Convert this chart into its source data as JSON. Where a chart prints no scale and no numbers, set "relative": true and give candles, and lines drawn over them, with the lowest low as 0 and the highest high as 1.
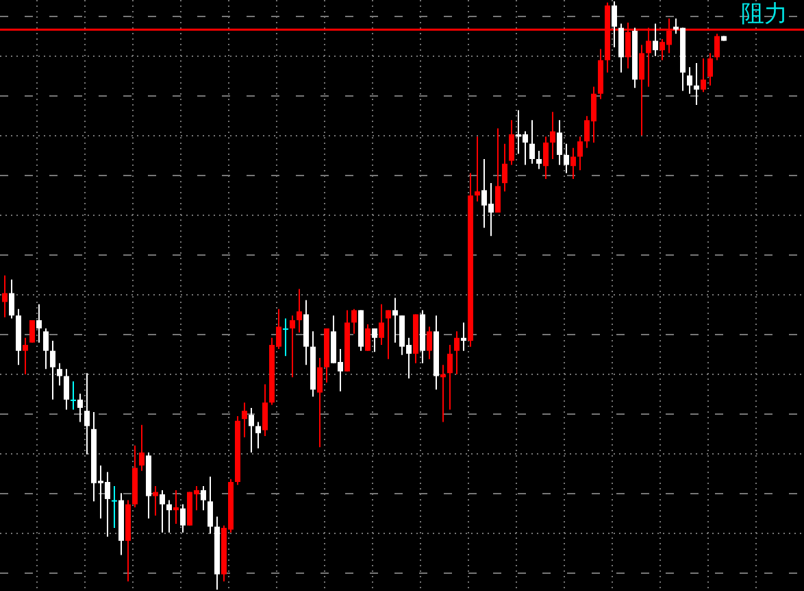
{
  "chart_data": {
    "type": "candlestick",
    "relative": true,
    "grid": true,
    "categories": [
      null,
      null,
      null,
      null,
      null,
      null,
      null,
      null,
      null,
      null,
      null,
      null,
      null,
      null,
      null,
      null,
      null,
      null,
      null,
      null,
      null,
      null,
      null,
      null,
      null,
      null,
      null,
      null,
      null,
      null,
      null,
      null,
      null,
      null,
      null,
      null,
      null,
      null,
      null,
      null,
      null,
      null,
      null,
      null,
      null,
      null,
      null,
      null,
      null,
      null,
      null,
      null,
      null,
      null,
      null,
      null,
      null,
      null,
      null,
      null,
      null,
      null,
      null,
      null,
      null,
      null,
      null,
      null,
      null,
      null,
      null,
      null,
      null,
      null,
      null,
      null,
      null,
      null,
      null,
      null,
      null,
      null,
      null,
      null,
      null,
      null,
      null,
      null,
      null,
      null,
      null,
      null,
      null,
      null,
      null,
      null,
      null,
      null,
      null,
      null,
      null,
      null,
      null,
      null,
      null,
      null
    ],
    "ohlc": [
      [
        0.489,
        0.534,
        0.463,
        0.504
      ],
      [
        0.504,
        0.527,
        0.461,
        0.466
      ],
      [
        0.466,
        0.477,
        0.382,
        0.406
      ],
      [
        0.406,
        0.428,
        0.366,
        0.416
      ],
      [
        0.42,
        0.458,
        0.42,
        0.458
      ],
      [
        0.458,
        0.485,
        0.42,
        0.444
      ],
      [
        0.439,
        0.444,
        0.375,
        0.406
      ],
      [
        0.406,
        0.423,
        0.323,
        0.378
      ],
      [
        0.375,
        0.385,
        0.347,
        0.363
      ],
      [
        0.363,
        0.375,
        0.306,
        0.323
      ],
      [
        0.323,
        0.354,
        0.306,
        0.323
      ],
      [
        0.323,
        0.333,
        0.285,
        0.309
      ],
      [
        0.304,
        0.368,
        0.23,
        0.278
      ],
      [
        0.273,
        0.302,
        0.15,
        0.181
      ],
      [
        0.185,
        0.211,
        0.121,
        0.181
      ],
      [
        0.183,
        0.2,
        0.09,
        0.154
      ],
      [
        0.152,
        0.176,
        0.105,
        0.152
      ],
      [
        0.152,
        0.164,
        0.059,
        0.083
      ],
      [
        0.083,
        0.152,
        0.014,
        0.145
      ],
      [
        0.145,
        0.245,
        0.14,
        0.207
      ],
      [
        0.211,
        0.28,
        0.202,
        0.233
      ],
      [
        0.228,
        0.233,
        0.121,
        0.159
      ],
      [
        0.159,
        0.176,
        0.126,
        0.166
      ],
      [
        0.162,
        0.169,
        0.097,
        0.145
      ],
      [
        0.145,
        0.152,
        0.097,
        0.135
      ],
      [
        0.135,
        0.169,
        0.112,
        0.14
      ],
      [
        0.138,
        0.145,
        0.097,
        0.109
      ],
      [
        0.109,
        0.166,
        0.109,
        0.166
      ],
      [
        0.162,
        0.176,
        0.135,
        0.169
      ],
      [
        0.169,
        0.176,
        0.135,
        0.152
      ],
      [
        0.15,
        0.192,
        0.095,
        0.107
      ],
      [
        0.107,
        0.124,
        0,
        0.026
      ],
      [
        0.026,
        0.109,
        0.014,
        0.105
      ],
      [
        0.102,
        0.188,
        0.097,
        0.183
      ],
      [
        0.183,
        0.295,
        0.178,
        0.287
      ],
      [
        0.29,
        0.318,
        0.259,
        0.304
      ],
      [
        0.297,
        0.309,
        0.233,
        0.278
      ],
      [
        0.278,
        0.285,
        0.24,
        0.266
      ],
      [
        0.271,
        0.349,
        0.261,
        0.318
      ],
      [
        0.318,
        0.428,
        0.314,
        0.416
      ],
      [
        0.413,
        0.477,
        0.409,
        0.447
      ],
      [
        0.444,
        0.461,
        0.397,
        0.444
      ],
      [
        0.444,
        0.466,
        0.361,
        0.458
      ],
      [
        0.458,
        0.511,
        0.437,
        0.473
      ],
      [
        0.468,
        0.492,
        0.382,
        0.413
      ],
      [
        0.413,
        0.439,
        0.328,
        0.34
      ],
      [
        0.335,
        0.394,
        0.242,
        0.378
      ],
      [
        0.378,
        0.444,
        0.352,
        0.444
      ],
      [
        0.439,
        0.466,
        0.385,
        0.385
      ],
      [
        0.387,
        0.409,
        0.337,
        0.371
      ],
      [
        0.371,
        0.475,
        0.371,
        0.454
      ],
      [
        0.454,
        0.477,
        0.435,
        0.475
      ],
      [
        0.475,
        0.475,
        0.406,
        0.413
      ],
      [
        0.406,
        0.451,
        0.406,
        0.444
      ],
      [
        0.444,
        0.444,
        0.404,
        0.428
      ],
      [
        0.428,
        0.485,
        0.416,
        0.454
      ],
      [
        0.461,
        0.475,
        0.392,
        0.475
      ],
      [
        0.475,
        0.496,
        0.42,
        0.466
      ],
      [
        0.466,
        0.466,
        0.399,
        0.413
      ],
      [
        0.416,
        0.428,
        0.359,
        0.401
      ],
      [
        0.401,
        0.468,
        0.385,
        0.468
      ],
      [
        0.468,
        0.475,
        0.385,
        0.406
      ],
      [
        0.406,
        0.447,
        0.392,
        0.439
      ],
      [
        0.439,
        0.466,
        0.34,
        0.363
      ],
      [
        0.361,
        0.382,
        0.285,
        0.366
      ],
      [
        0.368,
        0.416,
        0.306,
        0.401
      ],
      [
        0.406,
        0.439,
        0.366,
        0.428
      ],
      [
        0.428,
        0.454,
        0.406,
        0.423
      ],
      [
        0.423,
        0.708,
        0.413,
        0.67
      ],
      [
        0.67,
        0.77,
        0.66,
        0.677
      ],
      [
        0.679,
        0.732,
        0.615,
        0.653
      ],
      [
        0.656,
        0.691,
        0.601,
        0.641
      ],
      [
        0.641,
        0.784,
        0.641,
        0.686
      ],
      [
        0.691,
        0.758,
        0.677,
        0.724
      ],
      [
        0.729,
        0.798,
        0.722,
        0.774
      ],
      [
        0.774,
        0.815,
        0.741,
        0.77
      ],
      [
        0.774,
        0.779,
        0.722,
        0.76
      ],
      [
        0.758,
        0.798,
        0.724,
        0.732
      ],
      [
        0.732,
        0.746,
        0.715,
        0.724
      ],
      [
        0.72,
        0.77,
        0.698,
        0.76
      ],
      [
        0.76,
        0.812,
        0.732,
        0.779
      ],
      [
        0.777,
        0.798,
        0.722,
        0.739
      ],
      [
        0.739,
        0.758,
        0.708,
        0.722
      ],
      [
        0.72,
        0.751,
        0.698,
        0.736
      ],
      [
        0.736,
        0.77,
        0.713,
        0.762
      ],
      [
        0.762,
        0.805,
        0.751,
        0.798
      ],
      [
        0.796,
        0.855,
        0.76,
        0.843
      ],
      [
        0.843,
        0.919,
        0.834,
        0.9
      ],
      [
        0.9,
        0.998,
        0.879,
        0.993
      ],
      [
        0.993,
        1.0,
        0.922,
        0.957
      ],
      [
        0.955,
        0.962,
        0.879,
        0.905
      ],
      [
        0.905,
        0.964,
        0.886,
        0.948
      ],
      [
        0.95,
        0.955,
        0.853,
        0.867
      ],
      [
        0.867,
        0.926,
        0.772,
        0.912
      ],
      [
        0.912,
        0.955,
        0.855,
        0.933
      ],
      [
        0.933,
        0.962,
        0.907,
        0.917
      ],
      [
        0.917,
        0.936,
        0.9,
        0.931
      ],
      [
        0.926,
        0.971,
        0.912,
        0.95
      ],
      [
        0.957,
        0.971,
        0.945,
        0.952
      ],
      [
        0.955,
        0.955,
        0.848,
        0.879
      ],
      [
        0.874,
        0.888,
        0.843,
        0.857
      ],
      [
        0.857,
        0.895,
        0.824,
        0.85
      ],
      [
        0.85,
        0.903,
        0.846,
        0.867
      ],
      [
        0.872,
        0.912,
        0.857,
        0.903
      ],
      [
        0.905,
        0.945,
        0.9,
        0.941
      ],
      [
        0.941,
        0.941,
        0.933,
        0.933
      ]
    ],
    "colors": [
      "#ff0000",
      "#ffffff",
      "#ffffff",
      "#ff0000",
      "#ff0000",
      "#ffffff",
      "#ffffff",
      "#ffffff",
      "#ffffff",
      "#ffffff",
      "#00ffff",
      "#ffffff",
      "#ffffff",
      "#ffffff",
      "#ffffff",
      "#ffffff",
      "#00ffff",
      "#ffffff",
      "#ff0000",
      "#ff0000",
      "#ff0000",
      "#ffffff",
      "#ff0000",
      "#ffffff",
      "#ffffff",
      "#ff0000",
      "#ffffff",
      "#ff0000",
      "#ff0000",
      "#ffffff",
      "#ffffff",
      "#ffffff",
      "#ff0000",
      "#ff0000",
      "#ff0000",
      "#ff0000",
      "#ffffff",
      "#ffffff",
      "#ff0000",
      "#ff0000",
      "#ff0000",
      "#00ffff",
      "#ff0000",
      "#ff0000",
      "#ffffff",
      "#ffffff",
      "#ff0000",
      "#ff0000",
      "#ffffff",
      "#ffffff",
      "#ff0000",
      "#ff0000",
      "#ffffff",
      "#ff0000",
      "#ffffff",
      "#ff0000",
      "#ff0000",
      "#ffffff",
      "#ffffff",
      "#ffffff",
      "#ff0000",
      "#ffffff",
      "#ff0000",
      "#ffffff",
      "#ff0000",
      "#ff0000",
      "#ff0000",
      "#ffffff",
      "#ff0000",
      "#ff0000",
      "#ffffff",
      "#ffffff",
      "#ff0000",
      "#ff0000",
      "#ff0000",
      "#ffffff",
      "#ffffff",
      "#ffffff",
      "#ffffff",
      "#ff0000",
      "#ff0000",
      "#ffffff",
      "#ffffff",
      "#ff0000",
      "#ff0000",
      "#ff0000",
      "#ff0000",
      "#ff0000",
      "#ff0000",
      "#ffffff",
      "#ffffff",
      "#ff0000",
      "#ffffff",
      "#ff0000",
      "#ff0000",
      "#ffffff",
      "#ff0000",
      "#ff0000",
      "#ffffff",
      "#ffffff",
      "#ffffff",
      "#ffffff",
      "#ff0000",
      "#ff0000",
      "#ff0000",
      "#ffffff"
    ],
    "ref_lines": [
      {
        "axis": "y",
        "value": 0.952,
        "label": "阻力",
        "color": "#ff0000"
      }
    ]
  }
}
